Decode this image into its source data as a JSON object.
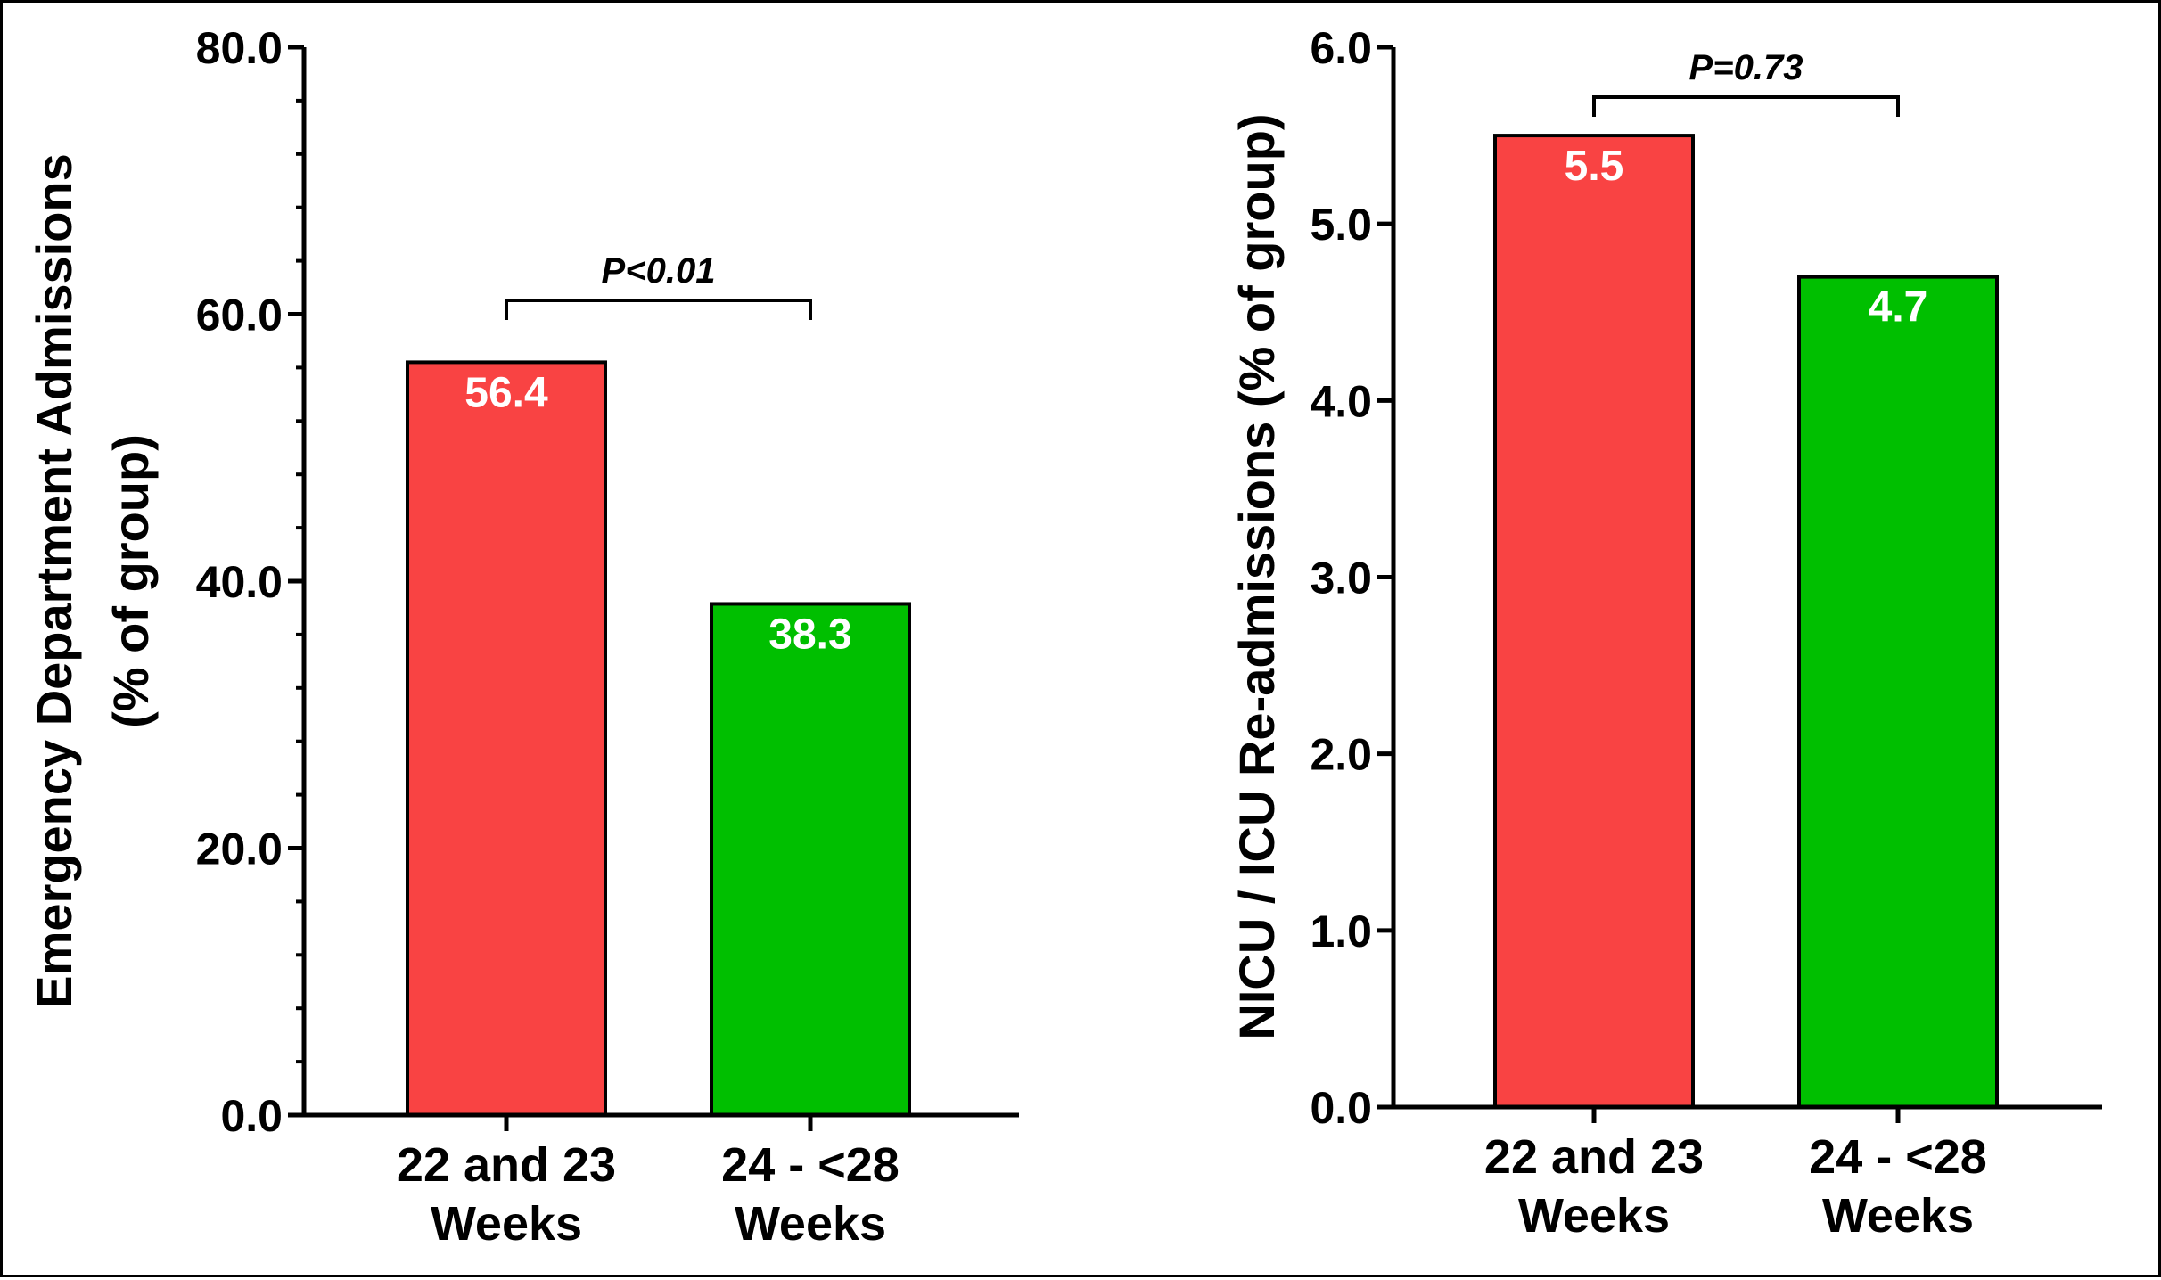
{
  "colors": {
    "group_22_23": "#f94343",
    "group_24_28": "#00bf00",
    "axis": "#000000"
  },
  "chart_data": [
    {
      "type": "bar",
      "categories": [
        [
          "22 and 23",
          "Weeks"
        ],
        [
          "24 - <28",
          "Weeks"
        ]
      ],
      "values": [
        56.4,
        38.3
      ],
      "value_labels": [
        "56.4",
        "38.3"
      ],
      "ylabel_lines": [
        "Emergency Department Admissions",
        "(% of group)"
      ],
      "ylim": [
        0,
        80
      ],
      "yticks": [
        "0.0",
        "20.0",
        "40.0",
        "60.0",
        "80.0"
      ],
      "minor_ticks_per_major": 4,
      "comparison": {
        "label": "P<0.01"
      },
      "grid": false
    },
    {
      "type": "bar",
      "categories": [
        [
          "22 and 23",
          "Weeks"
        ],
        [
          "24 - <28",
          "Weeks"
        ]
      ],
      "values": [
        5.5,
        4.7
      ],
      "value_labels": [
        "5.5",
        "4.7"
      ],
      "ylabel_lines": [
        "NICU / ICU Re-admissions (% of group)"
      ],
      "ylim": [
        0,
        6
      ],
      "yticks": [
        "0.0",
        "1.0",
        "2.0",
        "3.0",
        "4.0",
        "5.0",
        "6.0"
      ],
      "minor_ticks_per_major": 0,
      "comparison": {
        "label": "P=0.73"
      },
      "grid": false
    }
  ]
}
